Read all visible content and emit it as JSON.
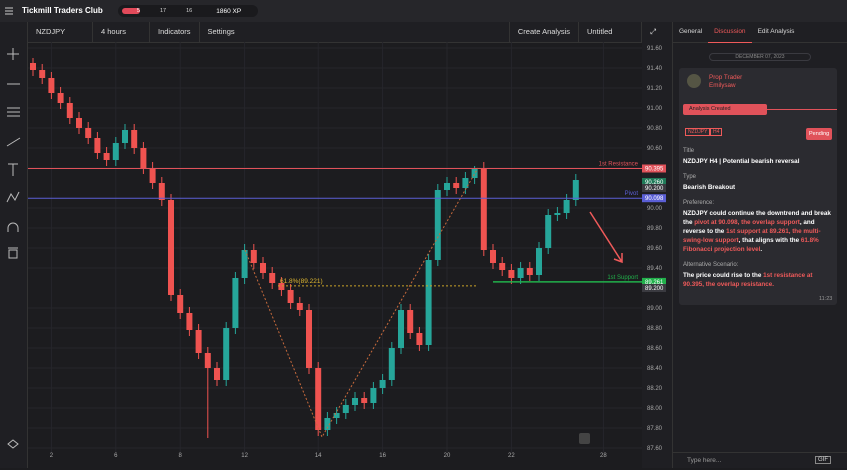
{
  "topbar": {
    "brand": "Tickmill Traders Club",
    "progress": [
      "5",
      "17",
      "16"
    ],
    "xp": "1860 XP"
  },
  "toolbar": {
    "symbol": "NZDJPY",
    "interval": "4 hours",
    "indicators": "Indicators",
    "settings": "Settings",
    "create": "Create Analysis",
    "layout": "Untitled"
  },
  "chart": {
    "type": "candlestick",
    "ylim": [
      87.6,
      91.6
    ],
    "yticks": [
      {
        "value": 91.6,
        "label": "91.60"
      },
      {
        "value": 91.4,
        "label": "91.40"
      },
      {
        "value": 91.2,
        "label": "91.20"
      },
      {
        "value": 91.0,
        "label": "91.00"
      },
      {
        "value": 90.8,
        "label": "90.80"
      },
      {
        "value": 90.6,
        "label": "90.60"
      },
      {
        "value": 90.4,
        "label": "90.40"
      },
      {
        "value": 90.0,
        "label": "90.00"
      },
      {
        "value": 89.8,
        "label": "89.80"
      },
      {
        "value": 89.6,
        "label": "89.60"
      },
      {
        "value": 89.4,
        "label": "89.40"
      },
      {
        "value": 89.0,
        "label": "89.00"
      },
      {
        "value": 88.8,
        "label": "88.80"
      },
      {
        "value": 88.6,
        "label": "88.60"
      },
      {
        "value": 88.4,
        "label": "88.40"
      },
      {
        "value": 88.2,
        "label": "88.20"
      },
      {
        "value": 88.0,
        "label": "88.00"
      },
      {
        "value": 87.8,
        "label": "87.80"
      },
      {
        "value": 87.6,
        "label": "87.60"
      }
    ],
    "xticks": [
      {
        "label": "2",
        "candle": 2
      },
      {
        "label": "6",
        "candle": 9
      },
      {
        "label": "8",
        "candle": 16
      },
      {
        "label": "12",
        "candle": 23
      },
      {
        "label": "14",
        "candle": 31
      },
      {
        "label": "16",
        "candle": 38
      },
      {
        "label": "20",
        "candle": 45
      },
      {
        "label": "22",
        "candle": 52
      },
      {
        "label": "28",
        "candle": 62
      }
    ],
    "colors": {
      "up": "#26a69a",
      "down": "#ef5350"
    },
    "candles": [
      [
        91.45,
        91.5,
        91.32,
        91.38
      ],
      [
        91.38,
        91.44,
        91.24,
        91.3
      ],
      [
        91.3,
        91.36,
        91.09,
        91.15
      ],
      [
        91.15,
        91.21,
        90.99,
        91.05
      ],
      [
        91.05,
        91.11,
        90.84,
        90.9
      ],
      [
        90.9,
        90.96,
        90.74,
        90.8
      ],
      [
        90.8,
        90.86,
        90.64,
        90.7
      ],
      [
        90.7,
        90.76,
        90.49,
        90.55
      ],
      [
        90.55,
        90.61,
        90.42,
        90.48
      ],
      [
        90.48,
        90.71,
        90.42,
        90.65
      ],
      [
        90.65,
        90.84,
        90.59,
        90.78
      ],
      [
        90.78,
        90.84,
        90.54,
        90.6
      ],
      [
        90.6,
        90.66,
        90.34,
        90.4
      ],
      [
        90.4,
        90.46,
        90.19,
        90.25
      ],
      [
        90.25,
        90.31,
        90.02,
        90.08
      ],
      [
        90.08,
        90.14,
        89.07,
        89.13
      ],
      [
        89.13,
        89.19,
        88.89,
        88.95
      ],
      [
        88.95,
        89.01,
        88.72,
        88.78
      ],
      [
        88.78,
        88.84,
        88.49,
        88.55
      ],
      [
        88.55,
        88.61,
        87.7,
        88.4
      ],
      [
        88.4,
        88.46,
        88.22,
        88.28
      ],
      [
        88.28,
        88.86,
        88.22,
        88.8
      ],
      [
        88.8,
        89.36,
        88.74,
        89.3
      ],
      [
        89.3,
        89.64,
        89.24,
        89.58
      ],
      [
        89.58,
        89.64,
        89.39,
        89.45
      ],
      [
        89.45,
        89.51,
        89.29,
        89.35
      ],
      [
        89.35,
        89.41,
        89.19,
        89.25
      ],
      [
        89.25,
        89.31,
        89.12,
        89.18
      ],
      [
        89.18,
        89.24,
        88.99,
        89.05
      ],
      [
        89.05,
        89.11,
        88.92,
        88.98
      ],
      [
        88.98,
        89.04,
        88.34,
        88.4
      ],
      [
        88.4,
        88.46,
        87.72,
        87.78
      ],
      [
        87.78,
        87.96,
        87.72,
        87.9
      ],
      [
        87.9,
        88.01,
        87.84,
        87.95
      ],
      [
        87.95,
        88.09,
        87.89,
        88.03
      ],
      [
        88.03,
        88.16,
        87.97,
        88.1
      ],
      [
        88.1,
        88.16,
        87.99,
        88.05
      ],
      [
        88.05,
        88.26,
        87.99,
        88.2
      ],
      [
        88.2,
        88.34,
        88.14,
        88.28
      ],
      [
        88.28,
        88.66,
        88.22,
        88.6
      ],
      [
        88.6,
        89.04,
        88.54,
        88.98
      ],
      [
        88.98,
        89.04,
        88.69,
        88.75
      ],
      [
        88.75,
        88.81,
        88.57,
        88.63
      ],
      [
        88.63,
        89.54,
        88.57,
        89.48
      ],
      [
        89.48,
        90.24,
        89.42,
        90.18
      ],
      [
        90.18,
        90.31,
        90.12,
        90.25
      ],
      [
        90.25,
        90.31,
        90.14,
        90.2
      ],
      [
        90.2,
        90.36,
        90.14,
        90.3
      ],
      [
        90.3,
        90.42,
        90.24,
        90.4
      ],
      [
        90.4,
        90.46,
        89.52,
        89.58
      ],
      [
        89.58,
        89.64,
        89.39,
        89.45
      ],
      [
        89.45,
        89.51,
        89.32,
        89.38
      ],
      [
        89.38,
        89.44,
        89.24,
        89.3
      ],
      [
        89.3,
        89.46,
        89.24,
        89.4
      ],
      [
        89.4,
        89.46,
        89.27,
        89.33
      ],
      [
        89.33,
        89.66,
        89.27,
        89.6
      ],
      [
        89.6,
        89.99,
        89.54,
        89.93
      ],
      [
        89.93,
        90.01,
        89.87,
        89.95
      ],
      [
        89.95,
        90.14,
        89.89,
        90.08
      ],
      [
        90.08,
        90.34,
        90.02,
        90.28
      ]
    ],
    "levels": [
      {
        "name": "1st Resistance",
        "value": 90.395,
        "label": "90.395",
        "color": "#e0525a",
        "full": true
      },
      {
        "name": "Pivot",
        "value": 90.098,
        "label": "90.098",
        "color": "#5b5fd6",
        "full": true
      },
      {
        "name": "1st Support",
        "value": 89.261,
        "label": "89.261",
        "color": "#21b04b",
        "full": false
      }
    ],
    "badges": [
      {
        "value": 90.26,
        "label": "90.260",
        "color": "#1f7a58"
      },
      {
        "value": 90.2,
        "label": "90.200",
        "color": "#3a3a40"
      },
      {
        "value": 89.2,
        "label": "89.200",
        "color": "#3a3a40"
      }
    ],
    "fib": {
      "label": "61.8%(89.221)",
      "value": 89.221
    }
  },
  "panel": {
    "tabs": [
      "General",
      "Discussion",
      "Edit Analysis"
    ],
    "date": "DECEMBER 07, 2023",
    "role": "Prop Trader",
    "user": "Emilysaw",
    "event": "Analysis Created",
    "tags": [
      "NZDJPY",
      "H4"
    ],
    "status": "Pending",
    "title_label": "Title",
    "title": "NZDJPY H4 | Potential bearish reversal",
    "type_label": "Type",
    "type": "Bearish Breakout",
    "preference_label": "Preference:",
    "preference": [
      {
        "text": "NZDJPY could continue the downtrend and break the ",
        "highlight": false
      },
      {
        "text": "pivot at 90.098, the overlap support",
        "highlight": true
      },
      {
        "text": ", and reverse to the ",
        "highlight": false
      },
      {
        "text": "1st support at 89.261, the multi-swing-low support",
        "highlight": true
      },
      {
        "text": ", that aligns with the ",
        "highlight": false
      },
      {
        "text": "61.8% Fibonacci projection level",
        "highlight": true
      },
      {
        "text": ".",
        "highlight": false
      }
    ],
    "alternative_label": "Alternative Scenario:",
    "alternative": [
      {
        "text": "The price could rise to the ",
        "highlight": false
      },
      {
        "text": "1st resistance at 90.395",
        "highlight": true
      },
      {
        "text": ", the overlap resistance.",
        "highlight": true
      }
    ],
    "time": "11:23",
    "input": "Type here...",
    "gif": "GIF"
  }
}
